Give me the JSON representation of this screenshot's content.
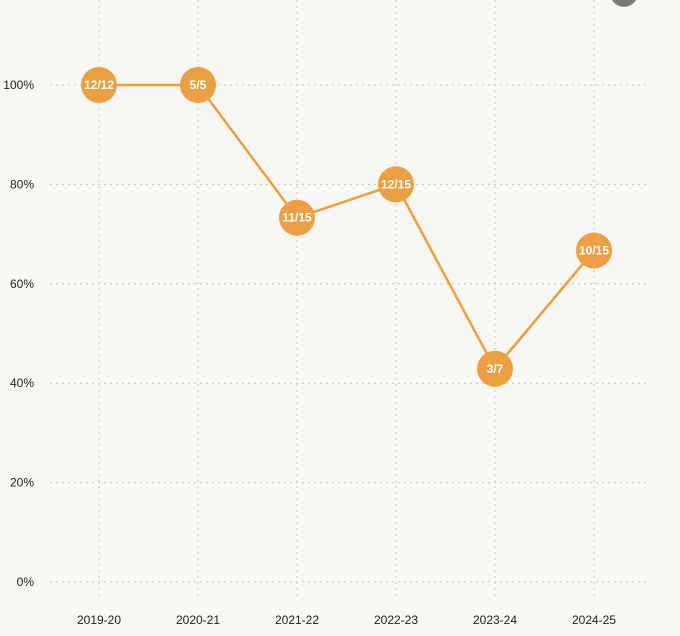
{
  "chart_data": {
    "type": "line",
    "categories": [
      "2019-20",
      "2020-21",
      "2021-22",
      "2022-23",
      "2023-24",
      "2024-25"
    ],
    "series": [
      {
        "values": [
          100,
          100,
          73.3,
          80,
          42.9,
          66.7
        ],
        "labels": [
          "12/12",
          "5/5",
          "11/15",
          "12/15",
          "3/7",
          "10/15"
        ]
      }
    ],
    "yticks": [
      "0%",
      "20%",
      "40%",
      "60%",
      "80%",
      "100%"
    ],
    "ylim": [
      0,
      100
    ],
    "grid": true,
    "legend": "none",
    "title": "",
    "xlabel": "",
    "ylabel": "",
    "colors": {
      "line": "#eca043",
      "marker": "#eca043",
      "marker_text": "#ffffff",
      "background": "#f8f7f2",
      "grid": "#c9c6bb"
    }
  }
}
